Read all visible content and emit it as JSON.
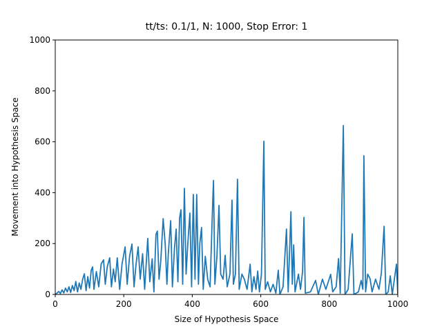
{
  "chart_data": {
    "type": "line",
    "title": "tt/ts: 0.1/1, N: 1000, Stop Error: 1",
    "x_label": "Size of Hypothesis Space",
    "y_label": "Movement into Hypothesis Space",
    "xlim": [
      0,
      1000
    ],
    "ylim": [
      0,
      1000
    ],
    "xticks": [
      0,
      200,
      400,
      600,
      800,
      1000
    ],
    "yticks": [
      0,
      200,
      400,
      600,
      800,
      1000
    ],
    "x": [
      0,
      5,
      10,
      15,
      20,
      25,
      30,
      35,
      40,
      45,
      50,
      55,
      60,
      65,
      70,
      75,
      80,
      85,
      90,
      95,
      100,
      105,
      109,
      113,
      120,
      127,
      134,
      141,
      146,
      152,
      159,
      164,
      170,
      175,
      181,
      188,
      195,
      204,
      210,
      217,
      224,
      230,
      236,
      242,
      248,
      255,
      261,
      270,
      276,
      283,
      288,
      294,
      298,
      303,
      308,
      315,
      321,
      326,
      330,
      337,
      342,
      348,
      353,
      358,
      363,
      367,
      372,
      377,
      382,
      387,
      393,
      398,
      403,
      408,
      413,
      418,
      422,
      427,
      432,
      438,
      445,
      452,
      460,
      462,
      466,
      472,
      478,
      483,
      490,
      496,
      502,
      510,
      516,
      520,
      526,
      532,
      537,
      545,
      552,
      560,
      569,
      574,
      580,
      586,
      591,
      596,
      602,
      609,
      613,
      620,
      628,
      636,
      644,
      651,
      656,
      665,
      675,
      680,
      688,
      692,
      696,
      700,
      710,
      716,
      722,
      726,
      730,
      745,
      760,
      768,
      780,
      790,
      804,
      810,
      820,
      827,
      832,
      841,
      846,
      855,
      867,
      872,
      885,
      893,
      898,
      901,
      906,
      912,
      919,
      925,
      935,
      945,
      952,
      960,
      965,
      972,
      978,
      984,
      990,
      996,
      1000
    ],
    "series": [
      {
        "name": "movement",
        "color": "#1f77b4",
        "values": [
          0,
          5,
          12,
          4,
          18,
          6,
          25,
          10,
          30,
          8,
          35,
          15,
          51,
          10,
          45,
          20,
          60,
          81,
          15,
          70,
          25,
          95,
          108,
          20,
          90,
          30,
          120,
          136,
          40,
          110,
          144,
          30,
          100,
          50,
          144,
          20,
          120,
          187,
          40,
          150,
          198,
          30,
          120,
          187,
          60,
          160,
          20,
          220,
          50,
          140,
          10,
          236,
          249,
          60,
          130,
          298,
          198,
          40,
          160,
          290,
          30,
          180,
          257,
          50,
          300,
          333,
          40,
          417,
          80,
          200,
          320,
          30,
          393,
          60,
          393,
          40,
          200,
          263,
          20,
          150,
          60,
          30,
          377,
          448,
          40,
          150,
          350,
          80,
          60,
          154,
          30,
          80,
          371,
          40,
          80,
          453,
          20,
          80,
          60,
          20,
          119,
          10,
          70,
          20,
          92,
          10,
          80,
          602,
          20,
          50,
          10,
          40,
          5,
          95,
          0,
          30,
          257,
          10,
          325,
          40,
          195,
          10,
          80,
          20,
          90,
          303,
          5,
          10,
          55,
          0,
          60,
          20,
          79,
          10,
          30,
          141,
          5,
          664,
          0,
          20,
          238,
          0,
          10,
          55,
          20,
          545,
          10,
          80,
          62,
          10,
          60,
          20,
          85,
          268,
          0,
          10,
          73,
          0,
          60,
          119,
          0
        ]
      }
    ]
  }
}
